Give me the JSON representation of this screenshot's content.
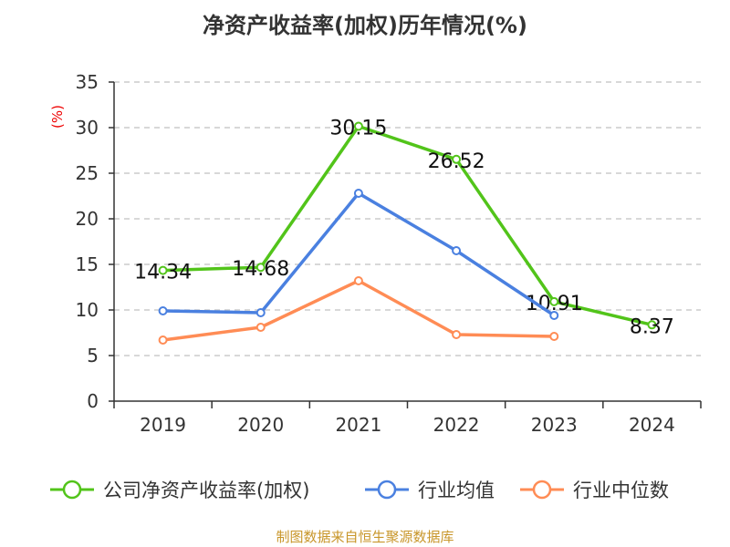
{
  "chart_data": {
    "type": "line",
    "title": "净资产收益率(加权)历年情况(%)",
    "ylabel": "(%)",
    "xlabel": "",
    "categories": [
      "2019",
      "2020",
      "2021",
      "2022",
      "2023",
      "2024"
    ],
    "ylim": [
      0,
      35
    ],
    "yticks": [
      0,
      5,
      10,
      15,
      20,
      25,
      30,
      35
    ],
    "grid": true,
    "legend_position": "bottom",
    "series": [
      {
        "name": "公司净资产收益率(加权)",
        "color": "#52c41a",
        "values": [
          14.34,
          14.68,
          30.15,
          26.52,
          10.91,
          8.37
        ],
        "labels": [
          "14.34",
          "14.68",
          "30.15",
          "26.52",
          "10.91",
          "8.37"
        ]
      },
      {
        "name": "行业均值",
        "color": "#4a80e0",
        "values": [
          9.9,
          9.7,
          22.8,
          16.5,
          9.4,
          null
        ]
      },
      {
        "name": "行业中位数",
        "color": "#ff8c55",
        "values": [
          6.7,
          8.1,
          13.2,
          7.3,
          7.1,
          null
        ]
      }
    ]
  },
  "source": "制图数据来自恒生聚源数据库"
}
